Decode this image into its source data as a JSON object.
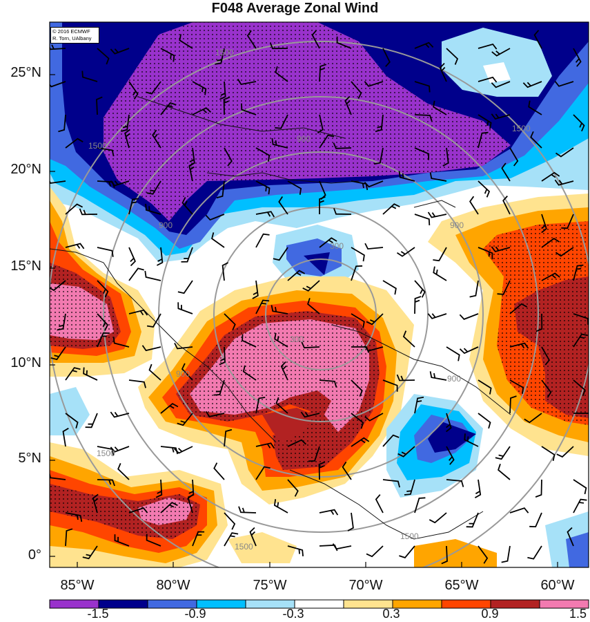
{
  "title": "F048 Average Zonal Wind",
  "credit": {
    "line1": "© 2016 ECMWF",
    "line2": "R. Torn, UAlbany"
  },
  "lat_labels": [
    "25°N",
    "20°N",
    "15°N",
    "10°N",
    "5°N",
    "0°"
  ],
  "lon_labels": [
    "85°W",
    "80°W",
    "75°W",
    "70°W",
    "65°W",
    "60°W"
  ],
  "colorbar": {
    "colors": [
      "#9932CC",
      "#00008B",
      "#4169E1",
      "#00BFFF",
      "#A6E1F8",
      "#ffffff",
      "#ffe38f",
      "#FFA500",
      "#FF4500",
      "#B22222",
      "#F27AB0"
    ],
    "labels": [
      "-1.5",
      "-0.9",
      "-0.3",
      "0.3",
      "0.9",
      "1.5"
    ]
  },
  "contour_labels": [
    "1500",
    "1500",
    "1500",
    "900",
    "900",
    "900",
    "900",
    "300",
    "300",
    "900",
    "1500",
    "1500",
    "1500"
  ]
}
